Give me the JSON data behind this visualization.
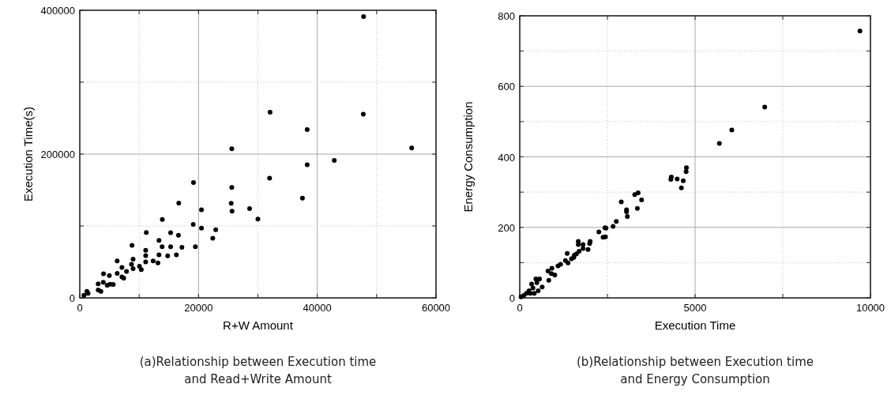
{
  "chart_data": [
    {
      "type": "scatter",
      "xlabel": "R+W Amount",
      "ylabel": "Execution Time(s)",
      "marker": "circle",
      "grid": true,
      "xlim": [
        0,
        60000
      ],
      "xticks": [
        0,
        {
          "value": 10000,
          "label": null
        },
        20000,
        {
          "value": 30000,
          "label": null
        },
        40000,
        {
          "value": 50000,
          "label": null
        },
        60000
      ],
      "ylim": [
        0,
        400000
      ],
      "yticks": [
        0,
        {
          "value": 100000,
          "label": null
        },
        200000,
        {
          "value": 300000,
          "label": null
        },
        400000
      ],
      "annotations": [
        "(a)Relationship between Execution time",
        "and Read+Write Amount"
      ],
      "series": [
        {
          "color": "#000000",
          "x": [
            1200,
            700,
            1400,
            3100,
            3100,
            3560,
            3960,
            4000,
            4980,
            4620,
            5100,
            5630,
            6300,
            6300,
            7100,
            7100,
            7400,
            7870,
            8710,
            8980,
            8980,
            8800,
            10050,
            10360,
            11200,
            11100,
            11100,
            11100,
            12360,
            13160,
            13340,
            13340,
            13870,
            13900,
            14800,
            15300,
            15300,
            16270,
            16670,
            16620,
            17200,
            19150,
            19110,
            19470,
            20500,
            20500,
            22900,
            22400,
            25600,
            25500,
            25640,
            28600,
            30000,
            31970,
            38300,
            37500,
            42860,
            47800,
            32050,
            38300,
            47750,
            25600,
            55900
          ],
          "values": [
            9200,
            3700,
            6200,
            19500,
            11000,
            9200,
            21700,
            33500,
            31000,
            17500,
            19000,
            18700,
            34000,
            51300,
            42200,
            29000,
            27600,
            36700,
            46600,
            40700,
            53900,
            73000,
            43900,
            39200,
            90800,
            66200,
            58900,
            50100,
            51500,
            48600,
            80000,
            59800,
            71100,
            109200,
            58500,
            90700,
            71100,
            59800,
            132000,
            87000,
            70400,
            160500,
            102200,
            71100,
            122400,
            97000,
            94800,
            83100,
            153500,
            131500,
            120500,
            124200,
            109600,
            166500,
            185200,
            138700,
            191200,
            391200,
            258300,
            234100,
            255400,
            207400,
            208500
          ]
        }
      ]
    },
    {
      "type": "scatter",
      "xlabel": "Execution Time",
      "ylabel": "Energy Consumption",
      "marker": "circle",
      "grid": true,
      "xlim": [
        0,
        10000
      ],
      "xticks": [
        0,
        {
          "value": 2500,
          "label": null
        },
        5000,
        {
          "value": 7500,
          "label": null
        },
        10000
      ],
      "ylim": [
        0,
        800
      ],
      "yticks": [
        0,
        {
          "value": 100,
          "label": null
        },
        200,
        {
          "value": 300,
          "label": null
        },
        400,
        {
          "value": 500,
          "label": null
        },
        600,
        {
          "value": 700,
          "label": null
        },
        800
      ],
      "annotations": [
        "(b)Relationship between Execution time",
        "and Energy Consumption"
      ],
      "series": [
        {
          "color": "#000000",
          "x": [
            9699,
            6985,
            6045,
            5692,
            4752,
            4744,
            4662,
            4609,
            4489,
            4323,
            4308,
            3474,
            3376,
            3278,
            3353,
            3068,
            3045,
            3045,
            2895,
            2752,
            2662,
            2459,
            2429,
            2256,
            2444,
            2376,
            1992,
            2008,
            1947,
            1805,
            1805,
            1669,
            1669,
            1692,
            1617,
            1556,
            1541,
            1474,
            1353,
            1376,
            1301,
            1165,
            1090,
            1000,
            917,
            902,
            805,
            827,
            564,
            459,
            489,
            526,
            376,
            263,
            188,
            113,
            38,
            338,
            639,
            300,
            414
          ],
          "values": [
            757,
            541,
            476,
            438,
            369,
            358,
            332,
            312,
            337,
            343,
            336,
            278,
            298,
            293,
            254,
            231,
            244,
            250,
            272,
            217,
            203,
            198,
            199,
            187,
            173,
            172,
            154,
            160,
            137,
            151,
            140,
            160,
            151,
            132,
            125,
            121,
            115,
            111,
            126,
            99,
            106,
            95,
            91,
            65,
            84,
            69,
            76,
            50,
            54,
            54,
            43,
            20,
            28,
            20,
            13,
            7,
            3,
            39,
            31,
            13,
            13
          ]
        }
      ]
    }
  ]
}
